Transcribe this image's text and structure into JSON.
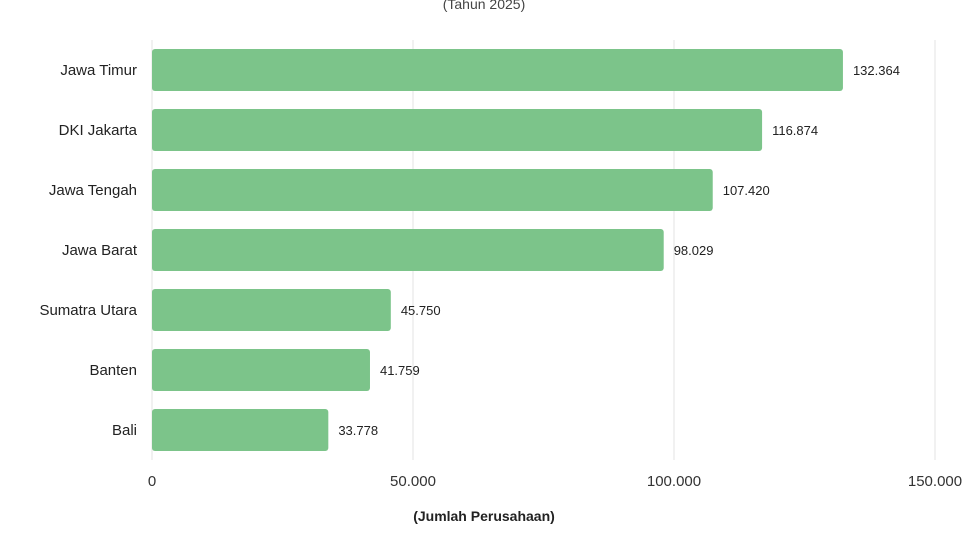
{
  "chart_data": {
    "type": "bar",
    "orientation": "horizontal",
    "subtitle": "(Tahun 2025)",
    "xlabel": "(Jumlah Perusahaan)",
    "categories": [
      "Jawa Timur",
      "DKI Jakarta",
      "Jawa Tengah",
      "Jawa Barat",
      "Sumatra Utara",
      "Banten",
      "Bali"
    ],
    "values": [
      132364,
      116874,
      107420,
      98029,
      45750,
      41759,
      33778
    ],
    "value_labels": [
      "132.364",
      "116.874",
      "107.420",
      "98.029",
      "45.750",
      "41.759",
      "33.778"
    ],
    "xlim": [
      0,
      150000
    ],
    "ticks": [
      0,
      50000,
      100000,
      150000
    ],
    "tick_labels": [
      "0",
      "50.000",
      "100.000",
      "150.000"
    ],
    "bar_color": "#7cc48a",
    "grid": true
  }
}
